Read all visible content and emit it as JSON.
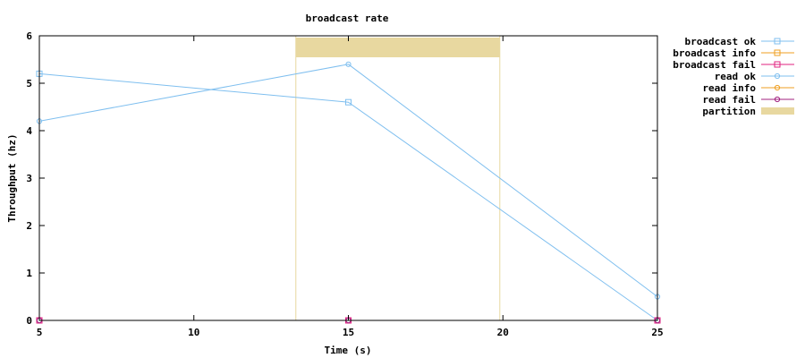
{
  "chart_data": {
    "type": "line",
    "title": "broadcast rate",
    "xlabel": "Time (s)",
    "ylabel": "Throughput (hz)",
    "xlim": [
      5,
      25
    ],
    "ylim": [
      0,
      6
    ],
    "xticks": [
      5,
      10,
      15,
      20,
      25
    ],
    "yticks": [
      0,
      1,
      2,
      3,
      4,
      5,
      6
    ],
    "grid": false,
    "legend_position": "outside-right",
    "series": [
      {
        "name": "broadcast ok",
        "marker": "square",
        "color": "#7fbfef",
        "points": [
          [
            5,
            5.2
          ],
          [
            15,
            4.6
          ],
          [
            25,
            0.0
          ]
        ]
      },
      {
        "name": "broadcast info",
        "marker": "square",
        "color": "#ef9f20",
        "points": []
      },
      {
        "name": "broadcast fail",
        "marker": "square",
        "color": "#e0207f",
        "points": [
          [
            5,
            0.0
          ],
          [
            15,
            0.0
          ],
          [
            25,
            0.0
          ]
        ]
      },
      {
        "name": "read ok",
        "marker": "circle",
        "color": "#7fbfef",
        "points": [
          [
            5,
            4.2
          ],
          [
            15,
            5.4
          ],
          [
            25,
            0.5
          ]
        ]
      },
      {
        "name": "read info",
        "marker": "circle",
        "color": "#ef9f20",
        "points": []
      },
      {
        "name": "read fail",
        "marker": "circle",
        "color": "#a0207f",
        "points": [
          [
            5,
            0.0
          ],
          [
            15,
            0.0
          ],
          [
            25,
            0.0
          ]
        ]
      }
    ],
    "partitions": [
      {
        "name": "partition",
        "start": 13.3,
        "end": 19.9,
        "color": "#e8d8a0"
      }
    ]
  }
}
